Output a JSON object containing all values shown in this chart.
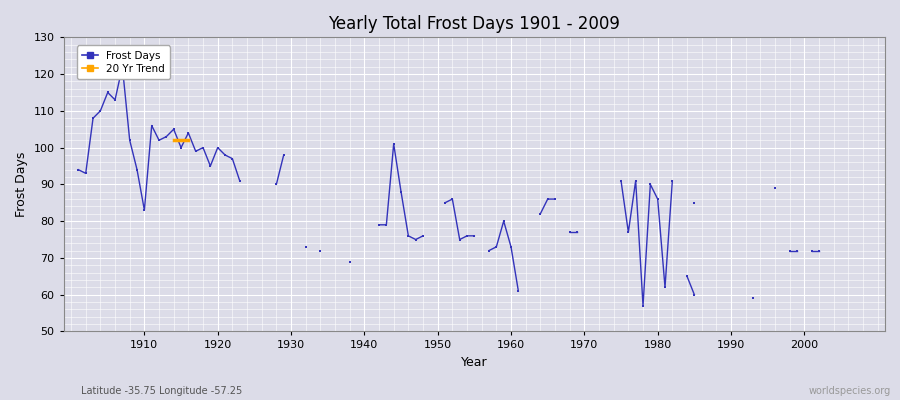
{
  "title": "Yearly Total Frost Days 1901 - 2009",
  "xlabel": "Year",
  "ylabel": "Frost Days",
  "subtitle": "Latitude -35.75 Longitude -57.25",
  "watermark": "worldspecies.org",
  "ylim": [
    50,
    130
  ],
  "xlim": [
    1899,
    2011
  ],
  "yticks": [
    50,
    60,
    70,
    80,
    90,
    100,
    110,
    120,
    130
  ],
  "xticks": [
    1910,
    1920,
    1930,
    1940,
    1950,
    1960,
    1970,
    1980,
    1990,
    2000
  ],
  "line_color": "#3333bb",
  "trend_color": "#FFA500",
  "bg_color": "#dcdce8",
  "grid_color": "#ffffff",
  "segments": [
    {
      "years": [
        1901,
        1902,
        1903,
        1904,
        1905,
        1906,
        1907,
        1908,
        1909,
        1910,
        1911,
        1912,
        1913,
        1914,
        1915,
        1916,
        1917,
        1918,
        1919,
        1920,
        1921,
        1922,
        1923
      ],
      "values": [
        94,
        93,
        108,
        110,
        115,
        113,
        122,
        102,
        94,
        83,
        106,
        102,
        103,
        105,
        100,
        104,
        99,
        100,
        95,
        100,
        98,
        97,
        91
      ]
    },
    {
      "years": [
        1928,
        1929
      ],
      "values": [
        90,
        98
      ]
    },
    {
      "years": [
        1932
      ],
      "values": [
        73
      ]
    },
    {
      "years": [
        1934
      ],
      "values": [
        72
      ]
    },
    {
      "years": [
        1938
      ],
      "values": [
        69
      ]
    },
    {
      "years": [
        1942,
        1943,
        1944,
        1945,
        1946,
        1947,
        1948
      ],
      "values": [
        79,
        79,
        101,
        88,
        76,
        75,
        76
      ]
    },
    {
      "years": [
        1951,
        1952,
        1953,
        1954,
        1955
      ],
      "values": [
        85,
        86,
        75,
        76,
        76
      ]
    },
    {
      "years": [
        1957,
        1958,
        1959,
        1960,
        1961
      ],
      "values": [
        72,
        73,
        80,
        73,
        61
      ]
    },
    {
      "years": [
        1964,
        1965,
        1966
      ],
      "values": [
        82,
        86,
        86
      ]
    },
    {
      "years": [
        1968,
        1969
      ],
      "values": [
        77,
        77
      ]
    },
    {
      "years": [
        1975,
        1976,
        1977,
        1978,
        1979,
        1980,
        1981,
        1982
      ],
      "values": [
        91,
        77,
        91,
        57,
        90,
        86,
        62,
        91
      ]
    },
    {
      "years": [
        1984,
        1985
      ],
      "values": [
        65,
        60
      ]
    },
    {
      "years": [
        1985
      ],
      "values": [
        85
      ]
    },
    {
      "years": [
        1993
      ],
      "values": [
        59
      ]
    },
    {
      "years": [
        1996
      ],
      "values": [
        89
      ]
    },
    {
      "years": [
        1998,
        1999
      ],
      "values": [
        72,
        72
      ]
    },
    {
      "years": [
        2001,
        2002
      ],
      "values": [
        72,
        72
      ]
    }
  ],
  "trend_segments": [
    {
      "years": [
        1914,
        1916
      ],
      "values": [
        102,
        102
      ]
    }
  ],
  "legend_items": [
    {
      "label": "Frost Days",
      "color": "#3333bb"
    },
    {
      "label": "20 Yr Trend",
      "color": "#FFA500"
    }
  ]
}
